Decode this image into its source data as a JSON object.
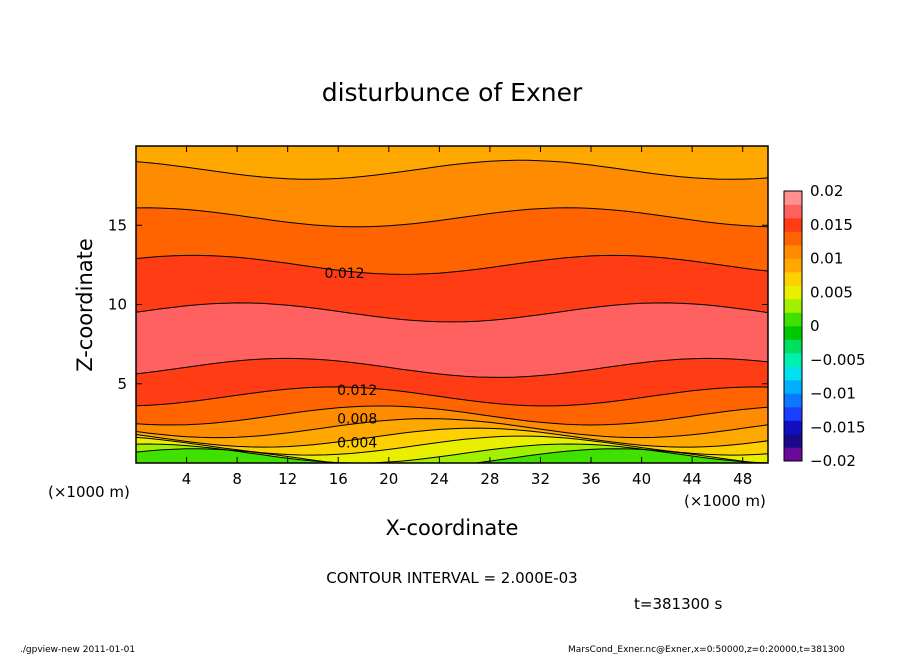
{
  "chart_data": {
    "type": "contour",
    "title": "disturbunce of Exner",
    "xlabel": "X-coordinate",
    "ylabel": "Z-coordinate",
    "x_unit_label": "(×1000 m)",
    "y_unit_label": "(×1000 m)",
    "xlim": [
      0,
      50
    ],
    "ylim": [
      0,
      20
    ],
    "x_ticks": [
      4,
      8,
      12,
      16,
      20,
      24,
      28,
      32,
      36,
      40,
      44,
      48
    ],
    "y_ticks": [
      5,
      10,
      15
    ],
    "contour_interval_text": "CONTOUR INTERVAL = 2.000E-03",
    "time_text": "t=381300 s",
    "contour_labels": [
      {
        "text": "0.012",
        "x": 16.5,
        "z": 12.0
      },
      {
        "text": "0.012",
        "x": 17.5,
        "z": 4.6
      },
      {
        "text": "0.008",
        "x": 17.5,
        "z": 2.8
      },
      {
        "text": "0.004",
        "x": 17.5,
        "z": 1.3
      }
    ],
    "colorbar": {
      "tick_labels": [
        "0.02",
        "0.015",
        "0.01",
        "0.005",
        "0",
        "−0.005",
        "−0.01",
        "−0.015",
        "−0.02"
      ],
      "levels": [
        -0.02,
        -0.018,
        -0.016,
        -0.014,
        -0.012,
        -0.01,
        -0.008,
        -0.006,
        -0.004,
        -0.002,
        0,
        0.002,
        0.004,
        0.006,
        0.008,
        0.01,
        0.012,
        0.014,
        0.016,
        0.018,
        0.02
      ],
      "colors": [
        "#6a0a9a",
        "#1a0a8a",
        "#1010c0",
        "#1a40ff",
        "#0a78ff",
        "#00b0ff",
        "#00e0f0",
        "#00f0b0",
        "#00e060",
        "#00c800",
        "#40e000",
        "#a0f000",
        "#e8f000",
        "#ffd000",
        "#ffa800",
        "#ff8c00",
        "#ff6400",
        "#ff3c14",
        "#ff6060",
        "#ff9090"
      ]
    },
    "bands": [
      {
        "from": 0.0,
        "to": 0.3,
        "value": 0.0
      },
      {
        "from": 0.3,
        "to": 0.6,
        "value": 0.002
      },
      {
        "from": 0.6,
        "to": 1.1,
        "value": 0.004
      },
      {
        "from": 1.1,
        "to": 1.6,
        "value": 0.006
      },
      {
        "from": 1.6,
        "to": 2.2,
        "value": 0.008
      },
      {
        "from": 2.2,
        "to": 3.0,
        "value": 0.01
      },
      {
        "from": 3.0,
        "to": 4.2,
        "value": 0.012
      },
      {
        "from": 4.2,
        "to": 6.0,
        "value": 0.014
      },
      {
        "from": 6.0,
        "to": 9.5,
        "value": 0.016
      },
      {
        "from": 9.5,
        "to": 12.5,
        "value": 0.014
      },
      {
        "from": 12.5,
        "to": 15.5,
        "value": 0.012
      },
      {
        "from": 15.5,
        "to": 18.5,
        "value": 0.01
      },
      {
        "from": 18.5,
        "to": 20.0,
        "value": 0.008
      }
    ]
  },
  "footer": {
    "left": "./gpview-new   2011-01-01",
    "right": "MarsCond_Exner.nc@Exner,x=0:50000,z=0:20000,t=381300"
  }
}
